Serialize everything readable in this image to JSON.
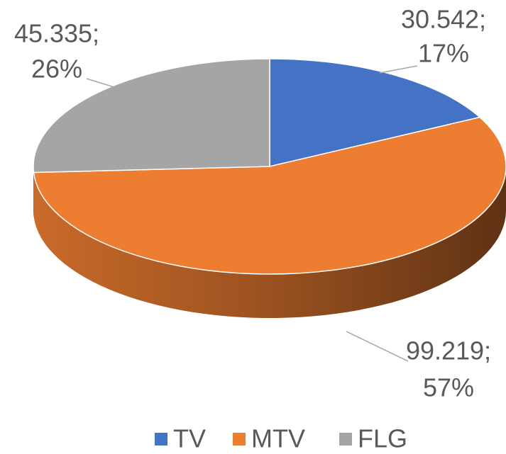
{
  "chart_data": {
    "type": "pie3d",
    "categories": [
      "TV",
      "MTV",
      "FLG"
    ],
    "values": [
      30.542,
      99.219,
      45.335
    ],
    "value_labels": [
      "30.542;",
      "99.219;",
      "45.335;"
    ],
    "percents": [
      17,
      57,
      26
    ],
    "percent_labels": [
      "17%",
      "57%",
      "26%"
    ],
    "colors": [
      "#4472c4",
      "#ed7d31",
      "#a5a5a5"
    ],
    "legend": "bottom"
  }
}
